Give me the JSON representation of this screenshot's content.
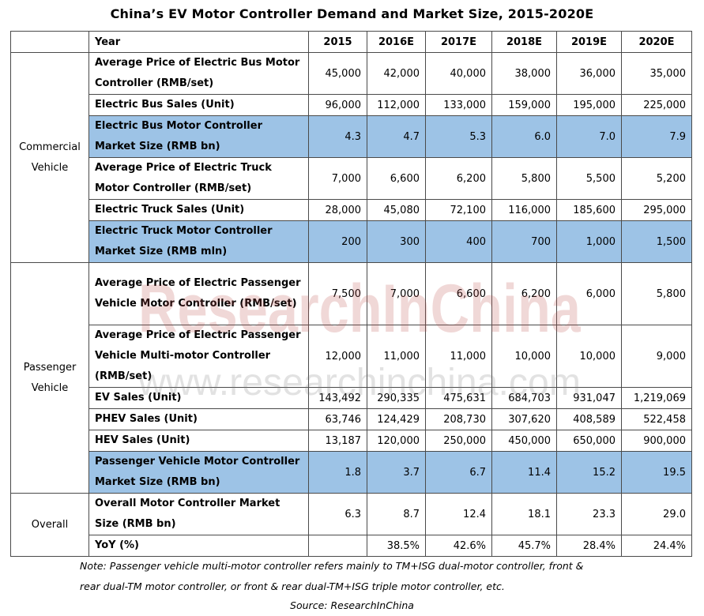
{
  "title": "China’s EV Motor Controller Demand and Market Size, 2015-2020E",
  "header": {
    "label": "Year",
    "years": [
      "2015",
      "2016E",
      "2017E",
      "2018E",
      "2019E",
      "2020E"
    ]
  },
  "groups": {
    "commercial": "Commercial Vehicle",
    "passenger": "Passenger Vehicle",
    "overall": "Overall"
  },
  "rows": [
    {
      "label": "Average Price of Electric Bus Motor Controller (RMB/set)",
      "values": [
        "45,000",
        "42,000",
        "40,000",
        "38,000",
        "36,000",
        "35,000"
      ]
    },
    {
      "label": "Electric Bus Sales (Unit)",
      "values": [
        "96,000",
        "112,000",
        "133,000",
        "159,000",
        "195,000",
        "225,000"
      ]
    },
    {
      "label": "Electric Bus Motor Controller Market Size (RMB bn)",
      "values": [
        "4.3",
        "4.7",
        "5.3",
        "6.0",
        "7.0",
        "7.9"
      ]
    },
    {
      "label": "Average Price of Electric Truck Motor Controller (RMB/set)",
      "values": [
        "7,000",
        "6,600",
        "6,200",
        "5,800",
        "5,500",
        "5,200"
      ]
    },
    {
      "label": "Electric Truck Sales (Unit)",
      "values": [
        "28,000",
        "45,080",
        "72,100",
        "116,000",
        "185,600",
        "295,000"
      ]
    },
    {
      "label": "Electric Truck Motor Controller Market Size (RMB mln)",
      "values": [
        "200",
        "300",
        "400",
        "700",
        "1,000",
        "1,500"
      ]
    },
    {
      "label": "Average Price of Electric Passenger Vehicle Motor Controller (RMB/set)",
      "values": [
        "7,500",
        "7,000",
        "6,600",
        "6,200",
        "6,000",
        "5,800"
      ]
    },
    {
      "label": "Average Price of Electric Passenger Vehicle Multi-motor Controller (RMB/set)",
      "values": [
        "12,000",
        "11,000",
        "11,000",
        "10,000",
        "10,000",
        "9,000"
      ]
    },
    {
      "label": "EV Sales (Unit)",
      "values": [
        "143,492",
        "290,335",
        "475,631",
        "684,703",
        "931,047",
        "1,219,069"
      ]
    },
    {
      "label": "PHEV Sales (Unit)",
      "values": [
        "63,746",
        "124,429",
        "208,730",
        "307,620",
        "408,589",
        "522,458"
      ]
    },
    {
      "label": "HEV Sales (Unit)",
      "values": [
        "13,187",
        "120,000",
        "250,000",
        "450,000",
        "650,000",
        "900,000"
      ]
    },
    {
      "label": "Passenger Vehicle Motor Controller Market Size (RMB bn)",
      "values": [
        "1.8",
        "3.7",
        "6.7",
        "11.4",
        "15.2",
        "19.5"
      ]
    },
    {
      "label": "Overall Motor Controller Market Size (RMB bn)",
      "values": [
        "6.3",
        "8.7",
        "12.4",
        "18.1",
        "23.3",
        "29.0"
      ]
    },
    {
      "label": "YoY (%)",
      "values": [
        "",
        "38.5%",
        "42.6%",
        "45.7%",
        "28.4%",
        "24.4%"
      ]
    }
  ],
  "note_line1": "Note: Passenger vehicle multi-motor controller refers mainly to TM+ISG dual-motor controller, front &",
  "note_line2": "rear dual-TM motor controller, or front & rear dual-TM+ISG triple motor controller, etc.",
  "source": "Source: ResearchInChina",
  "watermark": {
    "brand": "ResearchInChina",
    "url": "www.researchinchina.com"
  },
  "colors": {
    "highlight": "#9dc3e6",
    "border": "#4a4a4a",
    "watermark_red": "#c0504d"
  }
}
